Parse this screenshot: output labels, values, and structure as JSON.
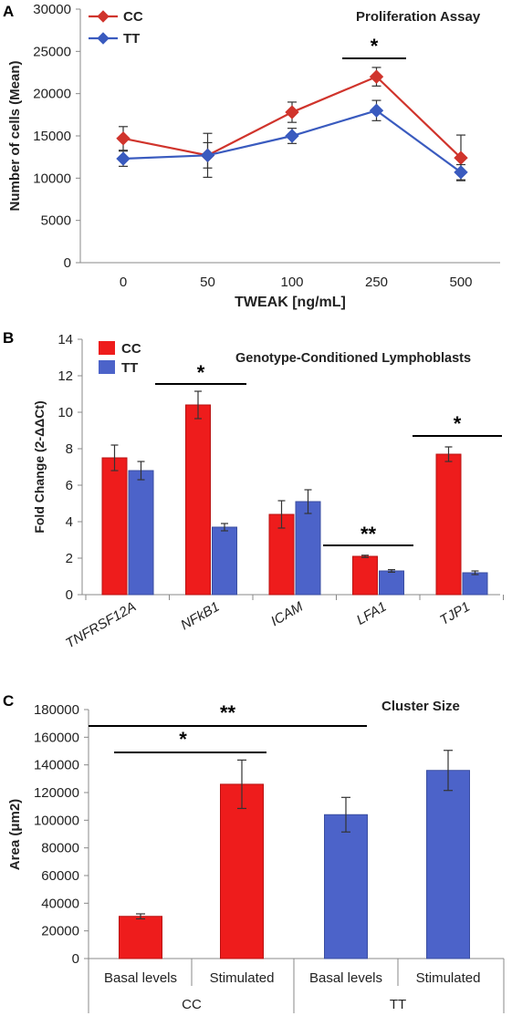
{
  "panels": [
    {
      "letter": "A",
      "title": "Proliferation Assay",
      "xlabel": "TWEAK [ng/mL]",
      "ylabel": "Number of cells (Mean)",
      "significance": [
        {
          "mark": "*"
        }
      ]
    },
    {
      "letter": "B",
      "title": "Genotype-Conditioned Lymphoblasts",
      "ylabel": "Fold Change (2-ΔΔCt)",
      "significance": [
        {
          "mark": "*"
        },
        {
          "mark": "**"
        },
        {
          "mark": "*"
        }
      ]
    },
    {
      "letter": "C",
      "title": "Cluster Size",
      "ylabel": "Area (μm2)",
      "significance": [
        {
          "mark": "**"
        },
        {
          "mark": "*"
        }
      ]
    }
  ],
  "chart_data": [
    {
      "type": "line",
      "title": "Proliferation Assay",
      "xlabel": "TWEAK [ng/mL]",
      "ylabel": "Number of cells (Mean)",
      "categories": [
        "0",
        "50",
        "100",
        "250",
        "500"
      ],
      "ylim": [
        0,
        30000
      ],
      "yticks": [
        "0",
        "5000",
        "10000",
        "15000",
        "20000",
        "25000",
        "30000"
      ],
      "legend_position": "top-left",
      "grid": false,
      "series": [
        {
          "name": "CC",
          "color": "#d0342c",
          "marker": "diamond",
          "values": [
            14700,
            12700,
            17800,
            22000,
            12400
          ],
          "errors": [
            1400,
            2600,
            1200,
            1100,
            2700
          ]
        },
        {
          "name": "TT",
          "color": "#3a5bbf",
          "marker": "diamond",
          "values": [
            12300,
            12700,
            15000,
            18000,
            10700
          ],
          "errors": [
            900,
            1500,
            900,
            1200,
            900
          ]
        }
      ]
    },
    {
      "type": "bar",
      "title": "Genotype-Conditioned Lymphoblasts",
      "xlabel": "",
      "ylabel": "Fold Change (2-ΔΔCt)",
      "categories": [
        "TNFRSF12A",
        "NFkB1",
        "ICAM",
        "LFA1",
        "TJP1"
      ],
      "ylim": [
        0,
        14
      ],
      "yticks": [
        "0",
        "2",
        "4",
        "6",
        "8",
        "10",
        "12",
        "14"
      ],
      "legend_position": "top-left",
      "grid": false,
      "series": [
        {
          "name": "CC",
          "color": "#ee1c1c",
          "values": [
            7.5,
            10.4,
            4.4,
            2.1,
            7.7
          ],
          "errors": [
            0.7,
            0.75,
            0.75,
            0.06,
            0.4
          ]
        },
        {
          "name": "TT",
          "color": "#4c63c9",
          "values": [
            6.8,
            3.7,
            5.1,
            1.3,
            1.2
          ],
          "errors": [
            0.5,
            0.2,
            0.65,
            0.07,
            0.1
          ]
        }
      ]
    },
    {
      "type": "bar",
      "title": "Cluster Size",
      "xlabel": "",
      "ylabel": "Area (μm2)",
      "categories": [
        "Basal levels",
        "Stimulated",
        "Basal levels",
        "Stimulated"
      ],
      "groups": [
        "CC",
        "TT"
      ],
      "ylim": [
        0,
        180000
      ],
      "yticks": [
        "0",
        "20000",
        "40000",
        "60000",
        "80000",
        "100000",
        "120000",
        "140000",
        "160000",
        "180000"
      ],
      "grid": false,
      "series": [
        {
          "values": [
            30500,
            126000,
            104000,
            136000
          ],
          "errors": [
            1800,
            17500,
            12500,
            14500
          ],
          "colors": [
            "#ee1c1c",
            "#ee1c1c",
            "#4c63c9",
            "#4c63c9"
          ]
        }
      ]
    }
  ]
}
